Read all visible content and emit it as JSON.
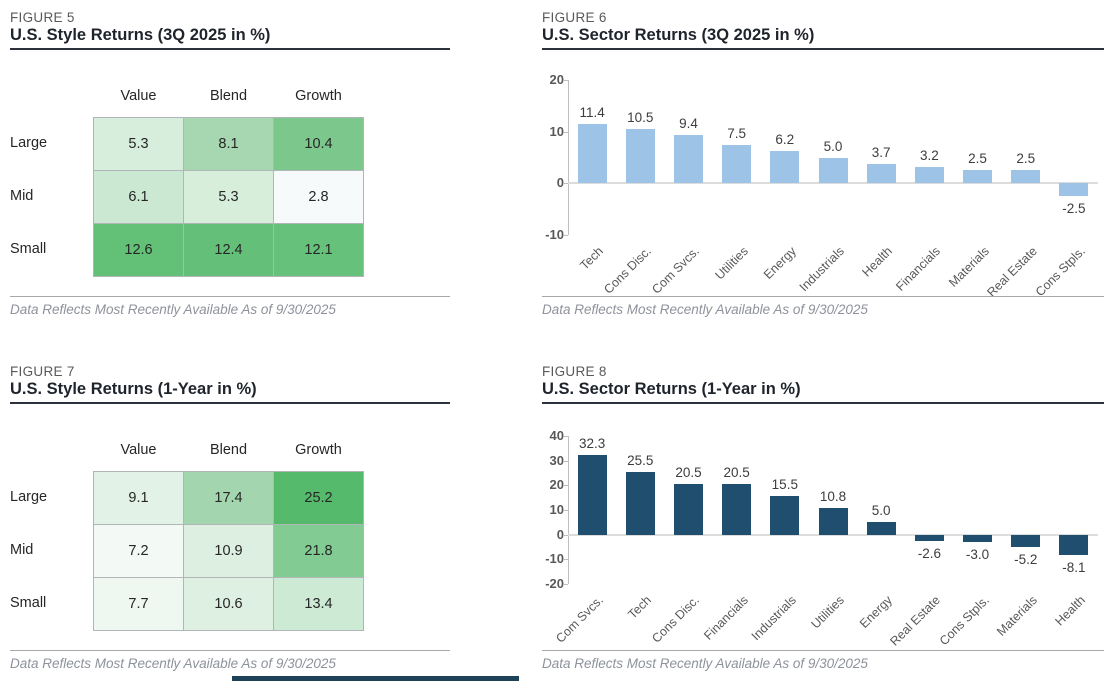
{
  "page": {
    "footnote": "Data Reflects Most Recently Available As of 9/30/2025",
    "bottom_bar_color": "#1E4257"
  },
  "colors": {
    "light_blue_bar": "#9DC3E6",
    "dark_blue_bar": "#1F4E6E",
    "axis": "#BFBFBF",
    "zero_line": "#DCDCDC",
    "tick_label": "#595959",
    "bar_label": "#3D3D3D"
  },
  "chart_data": [
    {
      "id": "fig5",
      "type": "heatmap",
      "figure_label": "FIGURE 5",
      "title": "U.S. Style Returns (3Q 2025 in %)",
      "columns": [
        "Value",
        "Blend",
        "Growth"
      ],
      "row_labels": [
        "Large",
        "Mid",
        "Small"
      ],
      "values": [
        [
          5.3,
          8.1,
          10.4
        ],
        [
          6.1,
          5.3,
          2.8
        ],
        [
          12.6,
          12.4,
          12.1
        ]
      ],
      "cell_colors": [
        [
          "#d7eedc",
          "#a6d7b0",
          "#7bc78c"
        ],
        [
          "#cbe8d2",
          "#d7eedb",
          "#f7fafa"
        ],
        [
          "#62c077",
          "#64c078",
          "#66c17a"
        ]
      ],
      "footnote": "Data Reflects Most Recently Available As of 9/30/2025"
    },
    {
      "id": "fig6",
      "type": "bar",
      "figure_label": "FIGURE 6",
      "title": "U.S. Sector Returns (3Q 2025 in %)",
      "categories": [
        "Tech",
        "Cons Disc.",
        "Com Svcs.",
        "Utilities",
        "Energy",
        "Industrials",
        "Health",
        "Financials",
        "Materials",
        "Real Estate",
        "Cons Stpls."
      ],
      "values": [
        11.4,
        10.5,
        9.4,
        7.5,
        6.2,
        5.0,
        3.7,
        3.2,
        2.5,
        2.5,
        -2.5
      ],
      "bar_color": "#9DC3E6",
      "ylim": [
        -10,
        20
      ],
      "yticks": [
        20,
        10,
        0,
        -10
      ],
      "footnote": "Data Reflects Most Recently Available As of 9/30/2025"
    },
    {
      "id": "fig7",
      "type": "heatmap",
      "figure_label": "FIGURE 7",
      "title": "U.S. Style Returns (1-Year in %)",
      "columns": [
        "Value",
        "Blend",
        "Growth"
      ],
      "row_labels": [
        "Large",
        "Mid",
        "Small"
      ],
      "values": [
        [
          9.1,
          17.4,
          25.2
        ],
        [
          7.2,
          10.9,
          21.8
        ],
        [
          7.7,
          10.6,
          13.4
        ]
      ],
      "cell_colors": [
        [
          "#e2f2e6",
          "#a3d6ae",
          "#56ba6c"
        ],
        [
          "#f3f9f4",
          "#dcefe0",
          "#82cb93"
        ],
        [
          "#eef7f0",
          "#def0e2",
          "#cdead5"
        ]
      ],
      "footnote": "Data Reflects Most Recently Available As of 9/30/2025"
    },
    {
      "id": "fig8",
      "type": "bar",
      "figure_label": "FIGURE 8",
      "title": "U.S. Sector Returns (1-Year in %)",
      "categories": [
        "Com Svcs.",
        "Tech",
        "Cons Disc.",
        "Financials",
        "Industrials",
        "Utilities",
        "Energy",
        "Real Estate",
        "Cons Stpls.",
        "Materials",
        "Health"
      ],
      "values": [
        32.3,
        25.5,
        20.5,
        20.5,
        15.5,
        10.8,
        5.0,
        -2.6,
        -3.0,
        -5.2,
        -8.1
      ],
      "bar_color": "#1F4E6E",
      "ylim": [
        -20,
        40
      ],
      "yticks": [
        40,
        30,
        20,
        10,
        0,
        -10,
        -20
      ],
      "footnote": "Data Reflects Most Recently Available As of 9/30/2025"
    }
  ]
}
